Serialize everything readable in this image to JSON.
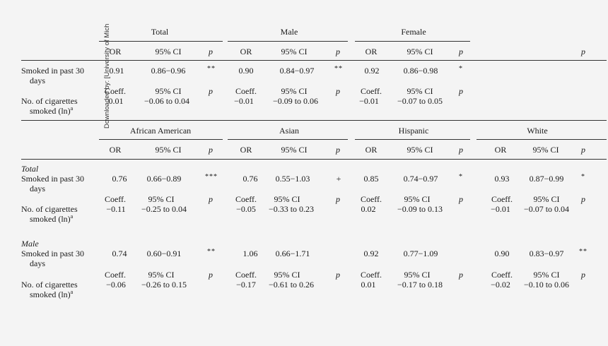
{
  "watermark": "Downloaded by: [University of Mich",
  "section1": {
    "groups": [
      "Total",
      "Male",
      "Female"
    ],
    "sub_or": [
      "OR",
      "95% CI",
      "p"
    ],
    "sub_coeff": [
      "Coeff.",
      "95% CI",
      "p"
    ],
    "last_col": "p",
    "row1_label": [
      "Smoked in past 30",
      "days"
    ],
    "row2_label": [
      "No. of cigarettes",
      "smoked (ln)",
      "a"
    ],
    "row1": [
      {
        "or": "0.91",
        "ci": "0.86−0.96",
        "p": "**"
      },
      {
        "or": "0.90",
        "ci": "0.84−0.97",
        "p": "**"
      },
      {
        "or": "0.92",
        "ci": "0.86−0.98",
        "p": "*"
      }
    ],
    "row2": [
      {
        "coef": "0.01",
        "ci": "−0.06 to 0.04"
      },
      {
        "coef": "−0.01",
        "ci": "−0.09 to 0.06"
      },
      {
        "coef": "−0.01",
        "ci": "−0.07 to 0.05"
      }
    ]
  },
  "section2": {
    "groups": [
      "African American",
      "Asian",
      "Hispanic",
      "White"
    ],
    "sub_or": [
      "OR",
      "95% CI",
      "p"
    ],
    "sub_coeff": [
      "Coeff.",
      "95% CI",
      "p"
    ],
    "total_label": "Total",
    "male_label": "Male",
    "row1_label": [
      "Smoked in past 30",
      "days"
    ],
    "row2_label": [
      "No. of cigarettes",
      "smoked (ln)",
      "a"
    ],
    "total_row1": [
      {
        "or": "0.76",
        "ci": "0.66−0.89",
        "p": "***"
      },
      {
        "or": "0.76",
        "ci": "0.55−1.03",
        "p": "+"
      },
      {
        "or": "0.85",
        "ci": "0.74−0.97",
        "p": "*"
      },
      {
        "or": "0.93",
        "ci": "0.87−0.99",
        "p": "*"
      }
    ],
    "total_row2": [
      {
        "coef": "−0.11",
        "ci": "−0.25 to 0.04"
      },
      {
        "coef": "−0.05",
        "ci": "−0.33 to 0.23"
      },
      {
        "coef": "0.02",
        "ci": "−0.09 to 0.13"
      },
      {
        "coef": "−0.01",
        "ci": "−0.07 to 0.04"
      }
    ],
    "male_row1": [
      {
        "or": "0.74",
        "ci": "0.60−0.91",
        "p": "**"
      },
      {
        "or": "1.06",
        "ci": "0.66−1.71",
        "p": ""
      },
      {
        "or": "0.92",
        "ci": "0.77−1.09",
        "p": ""
      },
      {
        "or": "0.90",
        "ci": "0.83−0.97",
        "p": "**"
      }
    ],
    "male_row2": [
      {
        "coef": "−0.06",
        "ci": "−0.26 to 0.15"
      },
      {
        "coef": "−0.17",
        "ci": "−0.61 to 0.26"
      },
      {
        "coef": "0.01",
        "ci": "−0.17 to 0.18"
      },
      {
        "coef": "−0.02",
        "ci": "−0.10 to 0.06"
      }
    ]
  }
}
